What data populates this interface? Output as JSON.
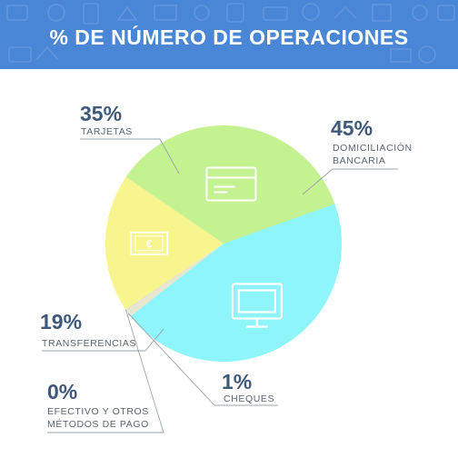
{
  "header": {
    "title": "% DE NÚMERO DE OPERACIONES"
  },
  "colors": {
    "banner": "#4a86d6",
    "tarjetas": "#c4f291",
    "domiciliacion": "#8ef5fb",
    "transferencias": "#f8f58f",
    "cheques": "#e8e6cf",
    "efectivo": "#d8d8d8",
    "icons": "#ffffff",
    "leaders": "#9aa3ab",
    "text_value": "#3d5a7c",
    "text_label": "#5a6470"
  },
  "chart_data": {
    "type": "pie",
    "title": "% DE NÚMERO DE OPERACIONES",
    "unit": "%",
    "slices": [
      {
        "id": "domiciliacion",
        "value_label": "45%",
        "value": 45,
        "label_lines": [
          "DOMICILIACIÓN",
          "BANCARIA"
        ],
        "icon": "monitor-icon"
      },
      {
        "id": "cheques",
        "value_label": "1%",
        "value": 1,
        "label_lines": [
          "CHEQUES"
        ]
      },
      {
        "id": "efectivo",
        "value_label": "0%",
        "value": 0,
        "label_lines": [
          "EFECTIVO Y OTROS",
          "MÉTODOS DE PAGO"
        ]
      },
      {
        "id": "transferencias",
        "value_label": "19%",
        "value": 19,
        "label_lines": [
          "TRANSFERENCIAS"
        ],
        "icon": "euro-banknote-icon",
        "icon_text": "€"
      },
      {
        "id": "tarjetas",
        "value_label": "35%",
        "value": 35,
        "label_lines": [
          "TARJETAS"
        ],
        "icon": "credit-card-icon"
      }
    ]
  }
}
